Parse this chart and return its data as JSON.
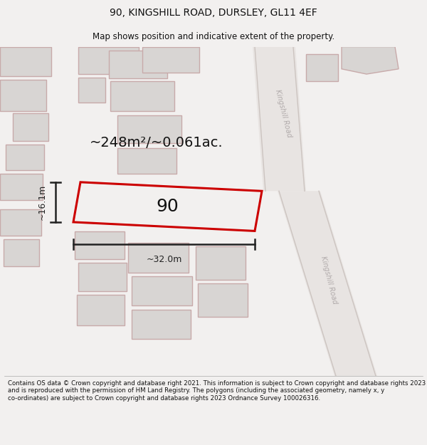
{
  "title_line1": "90, KINGSHILL ROAD, DURSLEY, GL11 4EF",
  "title_line2": "Map shows position and indicative extent of the property.",
  "area_text": "~248m²/~0.061ac.",
  "property_number": "90",
  "width_label": "~32.0m",
  "height_label": "~16.1m",
  "footer_text": "Contains OS data © Crown copyright and database right 2021. This information is subject to Crown copyright and database rights 2023 and is reproduced with the permission of HM Land Registry. The polygons (including the associated geometry, namely x, y co-ordinates) are subject to Crown copyright and database rights 2023 Ordnance Survey 100026316.",
  "bg_color": "#f2f0ef",
  "map_bg": "#ffffff",
  "road_fill": "#e8e4e2",
  "bld_fill": "#d8d5d3",
  "bld_edge": "#c8aaaa",
  "red_outline": "#cc0000",
  "road_label_color": "#b0aaaa",
  "dim_color": "#222222",
  "title_color": "#111111",
  "footer_color": "#111111"
}
